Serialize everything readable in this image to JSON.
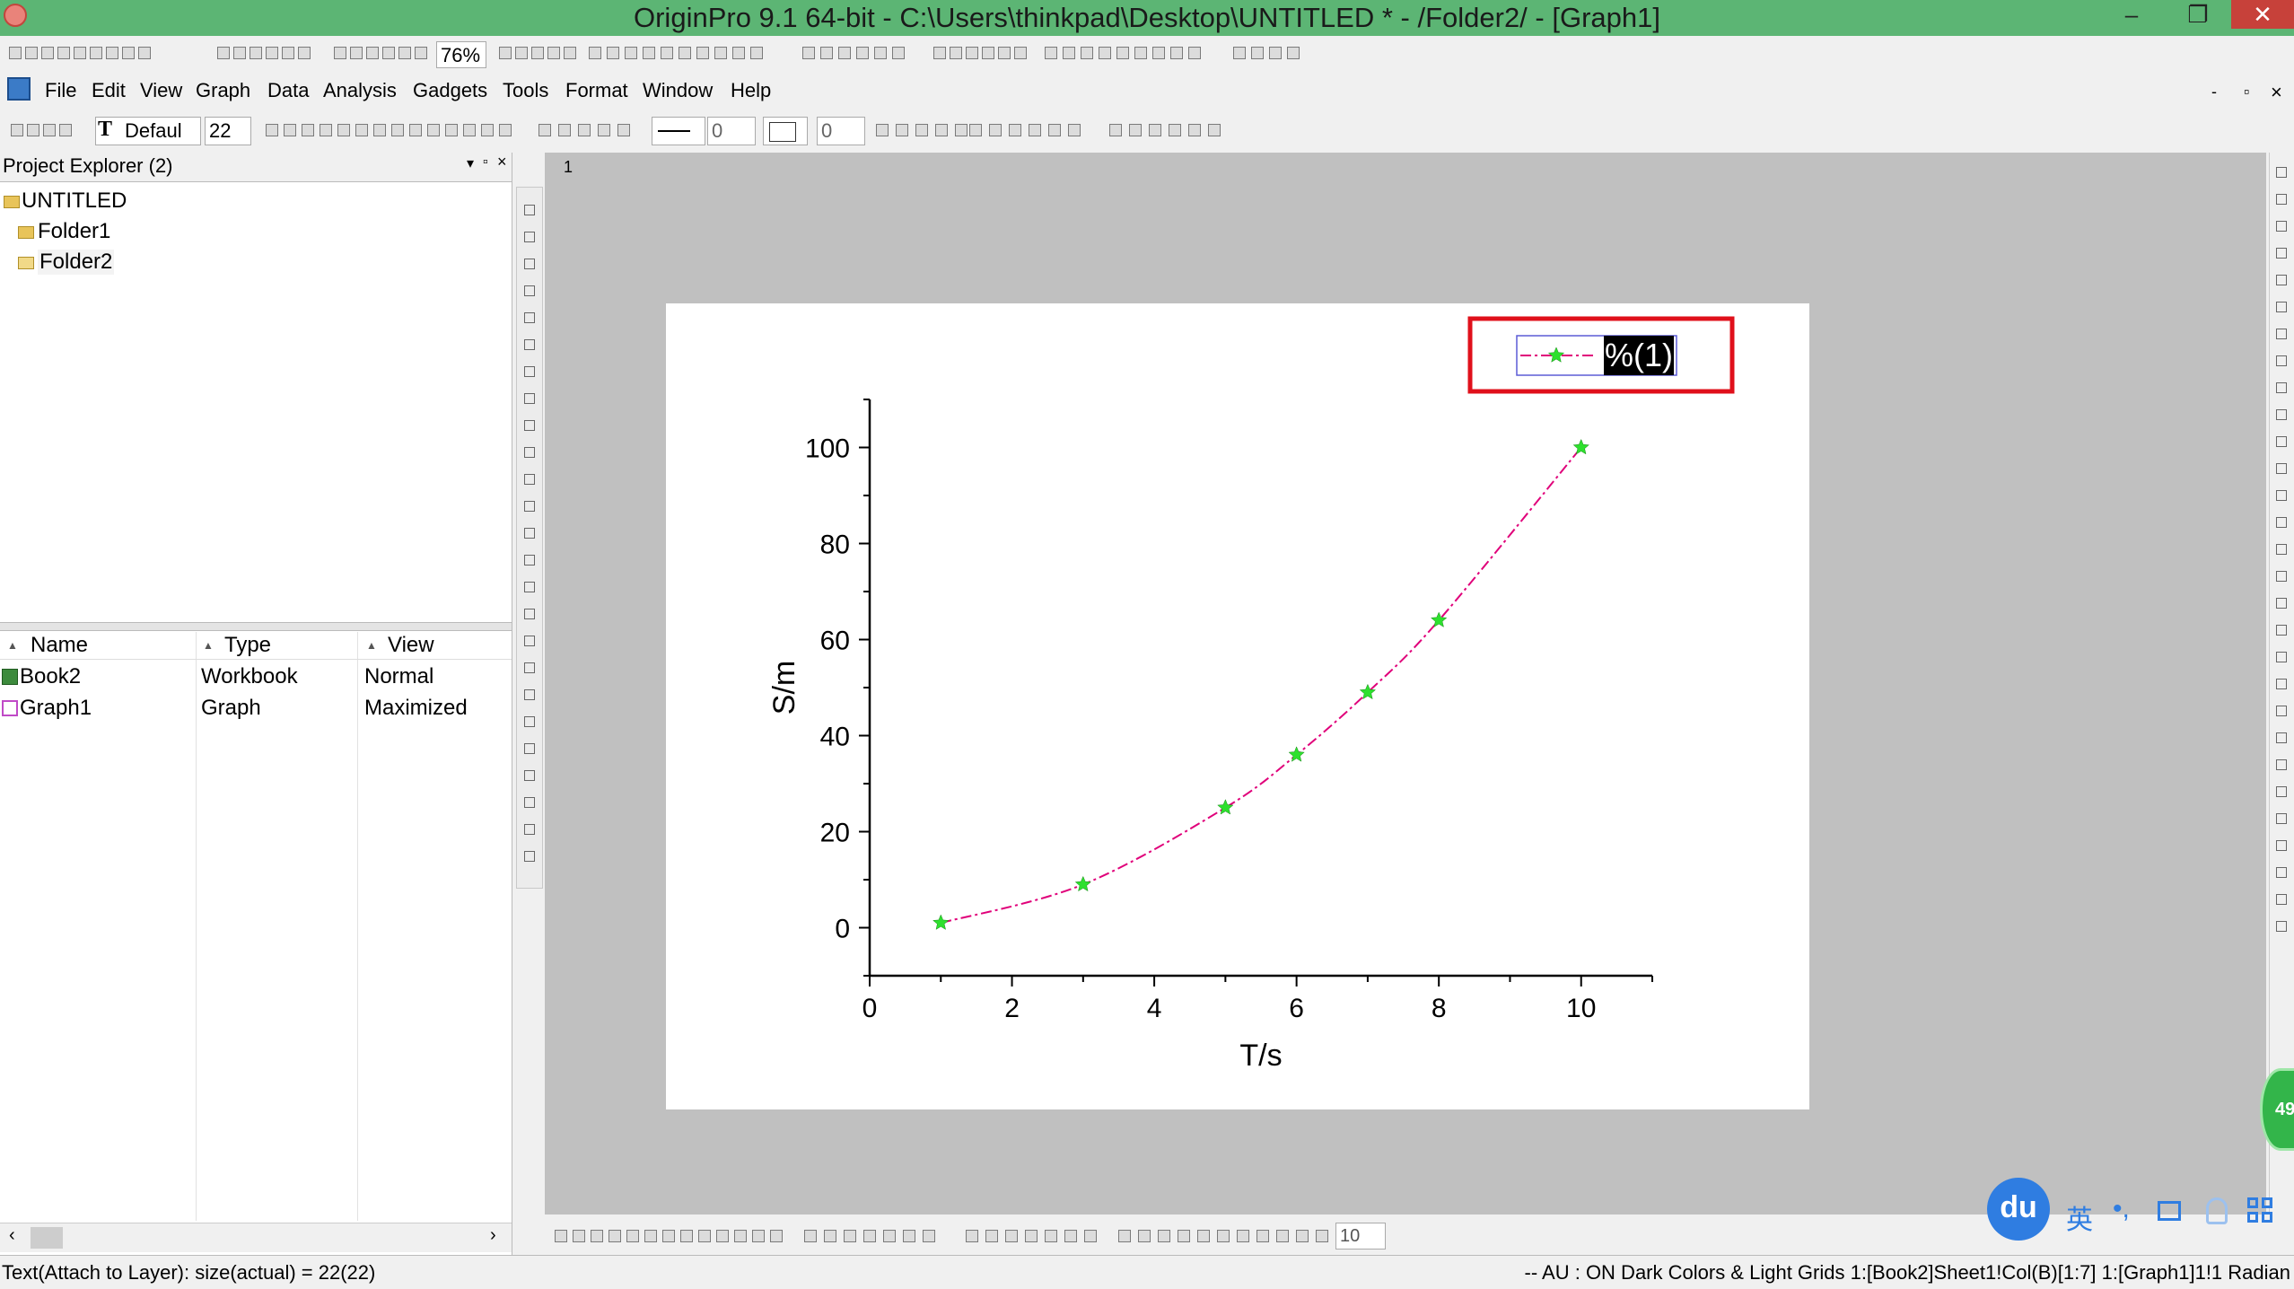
{
  "window": {
    "title": "OriginPro 9.1 64-bit - C:\\Users\\thinkpad\\Desktop\\UNTITLED * - /Folder2/ - [Graph1]",
    "minimize_glyph": "–",
    "restore_glyph": "❐",
    "close_glyph": "✕"
  },
  "toolbar": {
    "zoom": "76%",
    "font_name": "Defaul",
    "font_size": "22",
    "line_width_value": "0",
    "fill_value": "0",
    "bottom_size_value": "10"
  },
  "menu": [
    "File",
    "Edit",
    "View",
    "Graph",
    "Data",
    "Analysis",
    "Gadgets",
    "Tools",
    "Format",
    "Window",
    "Help"
  ],
  "mdi_controls": [
    "-",
    "▫",
    "×"
  ],
  "project_explorer": {
    "title": "Project Explorer (2)",
    "tree": {
      "root": "UNTITLED",
      "folders": [
        "Folder1",
        "Folder2"
      ]
    },
    "columns": [
      "Name",
      "Type",
      "View"
    ],
    "rows": [
      {
        "name": "Book2",
        "type": "Workbook",
        "view": "Normal"
      },
      {
        "name": "Graph1",
        "type": "Graph",
        "view": "Maximized"
      }
    ]
  },
  "graph": {
    "layer_label": "1",
    "legend_text": "%(1)"
  },
  "chart_data": {
    "type": "line",
    "xlabel": "T/s",
    "ylabel": "S/m",
    "xlim": [
      0,
      11
    ],
    "ylim": [
      -10,
      110
    ],
    "xticks": [
      0,
      2,
      4,
      6,
      8,
      10
    ],
    "yticks": [
      0,
      20,
      40,
      60,
      80,
      100
    ],
    "series": [
      {
        "x": [
          1,
          3,
          5,
          6,
          7,
          8,
          10
        ],
        "y": [
          1,
          9,
          25,
          36,
          49,
          64,
          100
        ],
        "line_color": "#e0007a",
        "marker": "star",
        "marker_color": "#2ee02e",
        "line_style": "dash-dot"
      }
    ],
    "grid": false,
    "legend_position": "top-right"
  },
  "taskbar_widget": {
    "badge": "du",
    "label": "英",
    "circle_text": "49"
  },
  "status": {
    "left": "Text(Attach to Layer): size(actual) = 22(22)",
    "right": "-- AU : ON Dark Colors & Light Grids 1:[Book2]Sheet1!Col(B)[1:7] 1:[Graph1]1!1 Radian"
  },
  "colors": {
    "titlebar": "#5cb574",
    "highlight_box": "#e0101b"
  }
}
